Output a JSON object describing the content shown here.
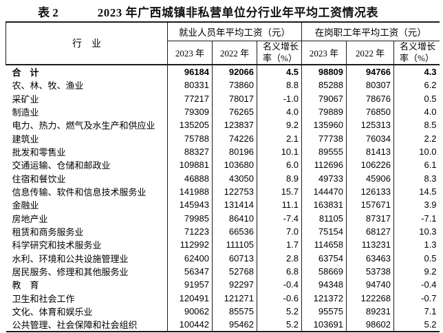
{
  "chart_data": {
    "type": "table",
    "table_label": "表 2",
    "title": "2023 年广西城镇非私营单位分行业年平均工资情况表",
    "industry_header": "行　业",
    "column_groups": [
      {
        "title": "就业人员年平均工资（元）",
        "columns": [
          "2023 年",
          "2022 年",
          "名义增长\n率（%）"
        ]
      },
      {
        "title": "在岗职工年平均工资（元）",
        "columns": [
          "2023 年",
          "2022 年",
          "名义增长\n率（%）"
        ]
      }
    ],
    "value_columns_order": [
      "就业人员2023",
      "就业人员2022",
      "就业人员名义增长率%",
      "在岗职工2023",
      "在岗职工2022",
      "在岗职工名义增长率%"
    ],
    "rows": [
      {
        "industry": "合　计",
        "bold": true,
        "values": [
          "96184",
          "92066",
          "4.5",
          "98809",
          "94766",
          "4.3"
        ]
      },
      {
        "industry": "农、林、牧、渔业",
        "bold": false,
        "values": [
          "80331",
          "73860",
          "8.8",
          "85288",
          "80307",
          "6.2"
        ]
      },
      {
        "industry": "采矿业",
        "bold": false,
        "values": [
          "77217",
          "78017",
          "-1.0",
          "79067",
          "78676",
          "0.5"
        ]
      },
      {
        "industry": "制造业",
        "bold": false,
        "values": [
          "79309",
          "76265",
          "4.0",
          "79889",
          "76850",
          "4.0"
        ]
      },
      {
        "industry": "电力、热力、燃气及水生产和供应业",
        "bold": false,
        "values": [
          "135205",
          "123837",
          "9.2",
          "135960",
          "125313",
          "8.5"
        ]
      },
      {
        "industry": "建筑业",
        "bold": false,
        "values": [
          "75788",
          "74226",
          "2.1",
          "77738",
          "76034",
          "2.2"
        ]
      },
      {
        "industry": "批发和零售业",
        "bold": false,
        "values": [
          "88327",
          "80196",
          "10.1",
          "89555",
          "81413",
          "10.0"
        ]
      },
      {
        "industry": "交通运输、仓储和邮政业",
        "bold": false,
        "values": [
          "109881",
          "103680",
          "6.0",
          "112696",
          "106226",
          "6.1"
        ]
      },
      {
        "industry": "住宿和餐饮业",
        "bold": false,
        "values": [
          "46888",
          "43050",
          "8.9",
          "49733",
          "45906",
          "8.3"
        ]
      },
      {
        "industry": "信息传输、软件和信息技术服务业",
        "bold": false,
        "values": [
          "141988",
          "122753",
          "15.7",
          "144470",
          "126133",
          "14.5"
        ]
      },
      {
        "industry": "金融业",
        "bold": false,
        "values": [
          "145943",
          "131414",
          "11.1",
          "163831",
          "157671",
          "3.9"
        ]
      },
      {
        "industry": "房地产业",
        "bold": false,
        "values": [
          "79985",
          "86410",
          "-7.4",
          "81105",
          "87317",
          "-7.1"
        ]
      },
      {
        "industry": "租赁和商务服务业",
        "bold": false,
        "values": [
          "71223",
          "66536",
          "7.0",
          "75154",
          "68127",
          "10.3"
        ]
      },
      {
        "industry": "科学研究和技术服务业",
        "bold": false,
        "values": [
          "112992",
          "111105",
          "1.7",
          "114658",
          "113231",
          "1.3"
        ]
      },
      {
        "industry": "水利、环境和公共设施管理业",
        "bold": false,
        "values": [
          "62400",
          "60713",
          "2.8",
          "63754",
          "63463",
          "0.5"
        ]
      },
      {
        "industry": "居民服务、修理和其他服务业",
        "bold": false,
        "values": [
          "56347",
          "52768",
          "6.8",
          "58669",
          "53738",
          "9.2"
        ]
      },
      {
        "industry": "教　育",
        "bold": false,
        "values": [
          "91957",
          "92297",
          "-0.4",
          "94348",
          "94740",
          "-0.4"
        ]
      },
      {
        "industry": "卫生和社会工作",
        "bold": false,
        "values": [
          "120491",
          "121271",
          "-0.6",
          "121372",
          "122268",
          "-0.7"
        ]
      },
      {
        "industry": "文化、体育和娱乐业",
        "bold": false,
        "values": [
          "90062",
          "85575",
          "5.2",
          "95575",
          "89231",
          "7.1"
        ]
      },
      {
        "industry": "公共管理、社会保障和社会组织",
        "bold": false,
        "values": [
          "100442",
          "95462",
          "5.2",
          "103691",
          "98602",
          "5.2"
        ]
      }
    ],
    "colors": {
      "text": "#000000",
      "border": "#1a1a1a",
      "background": "#ffffff"
    }
  }
}
